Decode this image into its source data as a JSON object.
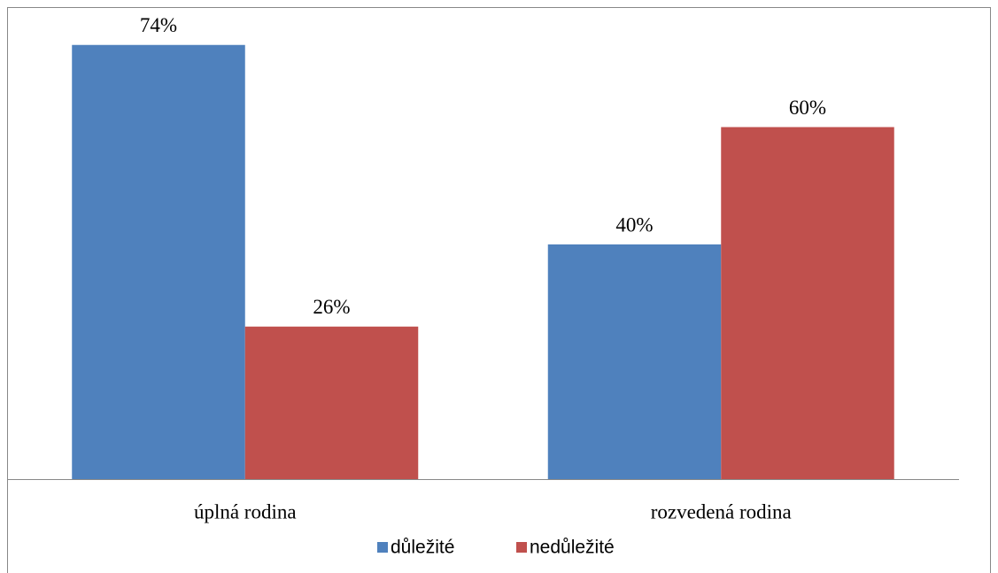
{
  "chart_data": {
    "type": "bar",
    "categories": [
      "úplná rodina",
      "rozvedená rodina"
    ],
    "series": [
      {
        "name": "důležité",
        "color": "#4f81bd",
        "values": [
          74,
          40
        ],
        "value_labels": [
          "74%",
          "40%"
        ]
      },
      {
        "name": "nedůležité",
        "color": "#c0504d",
        "values": [
          26,
          60
        ],
        "value_labels": [
          "26%",
          "60%"
        ]
      }
    ],
    "ylim": [
      0,
      80
    ],
    "legend": "bottom"
  }
}
